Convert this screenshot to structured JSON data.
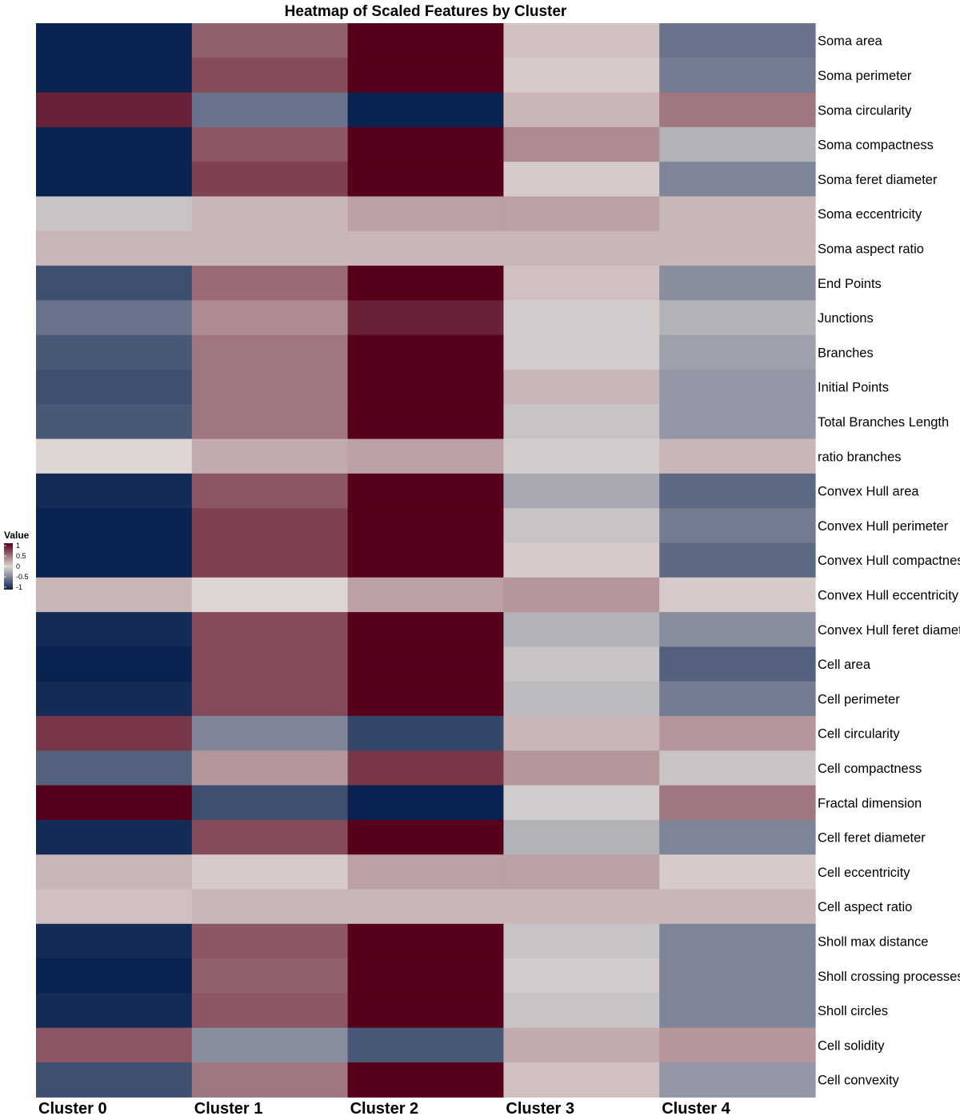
{
  "chart_data": {
    "type": "heatmap",
    "title": "Heatmap of Scaled Features by Cluster",
    "columns": [
      "Cluster 0",
      "Cluster 1",
      "Cluster 2",
      "Cluster 3",
      "Cluster 4"
    ],
    "rows": [
      "Soma area",
      "Soma perimeter",
      "Soma circularity",
      "Soma compactness",
      "Soma feret diameter",
      "Soma eccentricity",
      "Soma aspect ratio",
      "End Points",
      "Junctions",
      "Branches",
      "Initial Points",
      "Total Branches Length",
      "ratio branches",
      "Convex Hull area",
      "Convex Hull perimeter",
      "Convex Hull compactness",
      "Convex Hull eccentricity",
      "Convex Hull feret diameter",
      "Cell area",
      "Cell perimeter",
      "Cell circularity",
      "Cell compactness",
      "Fractal dimension",
      "Cell feret diameter",
      "Cell eccentricity",
      "Cell aspect ratio",
      "Sholl max distance",
      "Sholl crossing processes",
      "Sholl circles",
      "Cell solidity",
      "Cell convexity"
    ],
    "values": [
      [
        -1.0,
        0.55,
        1.0,
        0.1,
        -0.55
      ],
      [
        -1.0,
        0.65,
        1.0,
        0.05,
        -0.5
      ],
      [
        0.85,
        -0.55,
        -1.0,
        0.15,
        0.45
      ],
      [
        -1.0,
        0.6,
        1.0,
        0.35,
        -0.2
      ],
      [
        -1.0,
        0.7,
        1.0,
        0.05,
        -0.45
      ],
      [
        -0.1,
        0.15,
        0.25,
        0.25,
        0.15
      ],
      [
        0.15,
        0.15,
        0.15,
        0.15,
        0.15
      ],
      [
        -0.75,
        0.5,
        1.0,
        0.1,
        -0.4
      ],
      [
        -0.55,
        0.35,
        0.85,
        -0.05,
        -0.2
      ],
      [
        -0.7,
        0.45,
        1.0,
        -0.05,
        -0.3
      ],
      [
        -0.75,
        0.45,
        1.0,
        0.15,
        -0.35
      ],
      [
        -0.7,
        0.45,
        1.0,
        -0.1,
        -0.35
      ],
      [
        0.0,
        0.2,
        0.25,
        -0.05,
        0.15
      ],
      [
        -0.95,
        0.6,
        1.0,
        -0.25,
        -0.6
      ],
      [
        -1.0,
        0.7,
        1.0,
        -0.1,
        -0.5
      ],
      [
        -1.0,
        0.7,
        1.0,
        0.05,
        -0.6
      ],
      [
        0.15,
        0.0,
        0.25,
        0.3,
        0.05
      ],
      [
        -0.95,
        0.65,
        1.0,
        -0.2,
        -0.4
      ],
      [
        -1.0,
        0.65,
        1.0,
        -0.1,
        -0.65
      ],
      [
        -0.95,
        0.65,
        1.0,
        -0.15,
        -0.5
      ],
      [
        0.75,
        -0.45,
        -0.8,
        0.15,
        0.3
      ],
      [
        -0.65,
        0.3,
        0.75,
        0.3,
        -0.1
      ],
      [
        1.0,
        -0.75,
        -1.0,
        -0.05,
        0.45
      ],
      [
        -0.95,
        0.65,
        1.0,
        -0.2,
        -0.45
      ],
      [
        0.15,
        0.05,
        0.25,
        0.25,
        0.05
      ],
      [
        0.1,
        0.15,
        0.15,
        0.15,
        0.15
      ],
      [
        -0.95,
        0.6,
        1.0,
        -0.1,
        -0.45
      ],
      [
        -1.0,
        0.55,
        1.0,
        -0.05,
        -0.45
      ],
      [
        -0.95,
        0.6,
        1.0,
        -0.1,
        -0.45
      ],
      [
        0.6,
        -0.4,
        -0.7,
        0.2,
        0.3
      ],
      [
        -0.75,
        0.45,
        1.0,
        0.1,
        -0.35
      ]
    ],
    "color_scale": {
      "low": "#0a2250",
      "mid": "#ddd6d2",
      "high": "#56001b",
      "limits": [
        -1,
        1
      ]
    },
    "legend": {
      "title": "Value",
      "ticks": [
        "1",
        "0.5",
        "0",
        "-0.5",
        "-1"
      ],
      "position": "left"
    }
  }
}
